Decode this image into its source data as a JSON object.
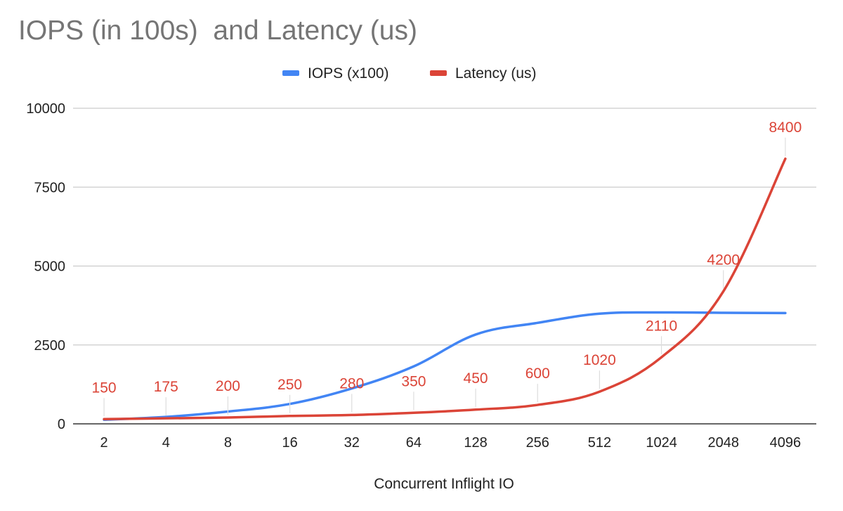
{
  "chart_data": {
    "type": "line",
    "title": "IOPS (in 100s)  and Latency (us)",
    "xlabel": "Concurrent Inflight IO",
    "ylabel": "",
    "categories": [
      "2",
      "4",
      "8",
      "16",
      "32",
      "64",
      "128",
      "256",
      "512",
      "1024",
      "2048",
      "4096"
    ],
    "ylim": [
      0,
      10000
    ],
    "yticks": [
      0,
      2500,
      5000,
      7500,
      10000
    ],
    "grid": true,
    "legend_position": "top",
    "series": [
      {
        "name": "IOPS (x100)",
        "color": "#4285f4",
        "values": [
          130,
          220,
          390,
          630,
          1120,
          1820,
          2830,
          3200,
          3490,
          3530,
          3520,
          3510
        ],
        "show_labels": false
      },
      {
        "name": "Latency (us)",
        "color": "#db4437",
        "values": [
          150,
          175,
          200,
          250,
          280,
          350,
          450,
          600,
          1020,
          2110,
          4200,
          8400
        ],
        "labels": [
          "150",
          "175",
          "200",
          "250",
          "280",
          "350",
          "450",
          "600",
          "1020",
          "2110",
          "4200",
          "8400"
        ],
        "show_labels": true
      }
    ]
  }
}
